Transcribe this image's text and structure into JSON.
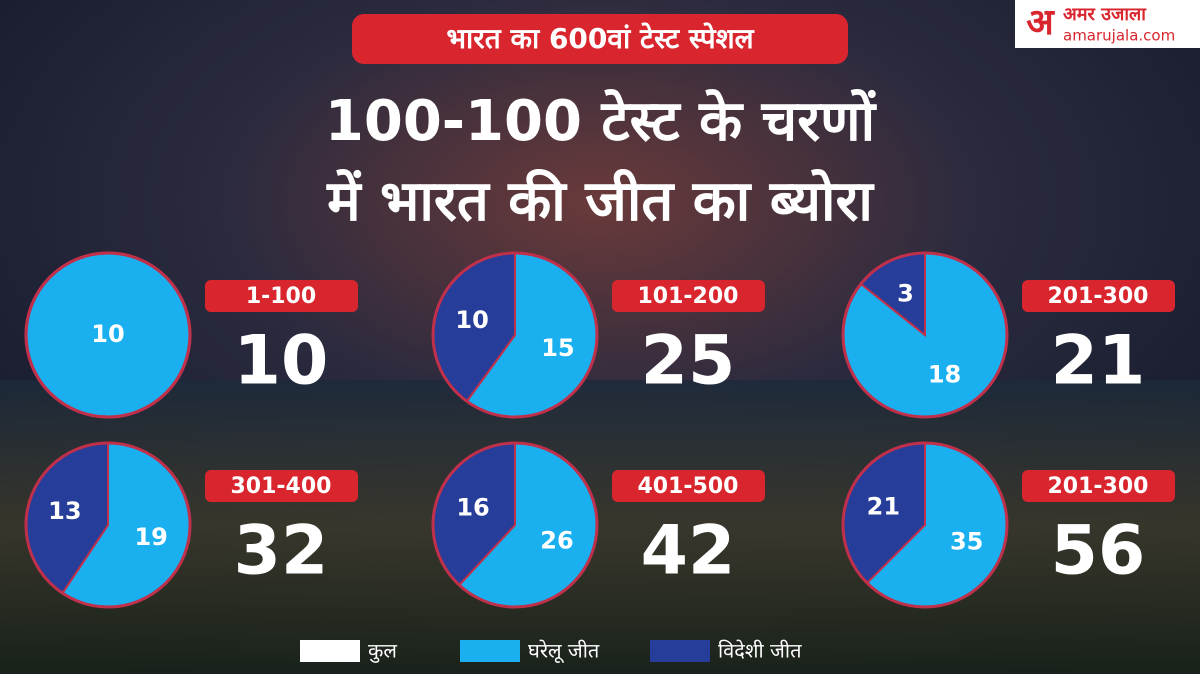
{
  "banner": "भारत का 600वां टेस्ट स्पेशल",
  "title_lines": [
    "100-100 टेस्ट के चरणों",
    "में भारत की जीत का ब्योरा"
  ],
  "logo": {
    "mark": "अ",
    "name": "अमर उजाला",
    "site": "amarujala.com"
  },
  "legend": [
    {
      "label": "कुल",
      "color": "#ffffff"
    },
    {
      "label": "घरेलू जीत",
      "color": "#1ab0f0"
    },
    {
      "label": "विदेशी जीत",
      "color": "#263d9a"
    }
  ],
  "chart_data": [
    {
      "type": "pie",
      "title": "1-100",
      "total": 10,
      "values": [
        10
      ],
      "colors": [
        "#1ab0f0"
      ]
    },
    {
      "type": "pie",
      "title": "101-200",
      "total": 25,
      "values": [
        15,
        10
      ],
      "colors": [
        "#1ab0f0",
        "#263d9a"
      ]
    },
    {
      "type": "pie",
      "title": "201-300",
      "total": 21,
      "values": [
        18,
        3
      ],
      "colors": [
        "#1ab0f0",
        "#263d9a"
      ]
    },
    {
      "type": "pie",
      "title": "301-400",
      "total": 32,
      "values": [
        19,
        13
      ],
      "colors": [
        "#1ab0f0",
        "#263d9a"
      ]
    },
    {
      "type": "pie",
      "title": "401-500",
      "total": 42,
      "values": [
        26,
        16
      ],
      "colors": [
        "#1ab0f0",
        "#263d9a"
      ]
    },
    {
      "type": "pie",
      "title": "201-300",
      "total": 56,
      "values": [
        35,
        21
      ],
      "colors": [
        "#1ab0f0",
        "#263d9a"
      ]
    }
  ]
}
